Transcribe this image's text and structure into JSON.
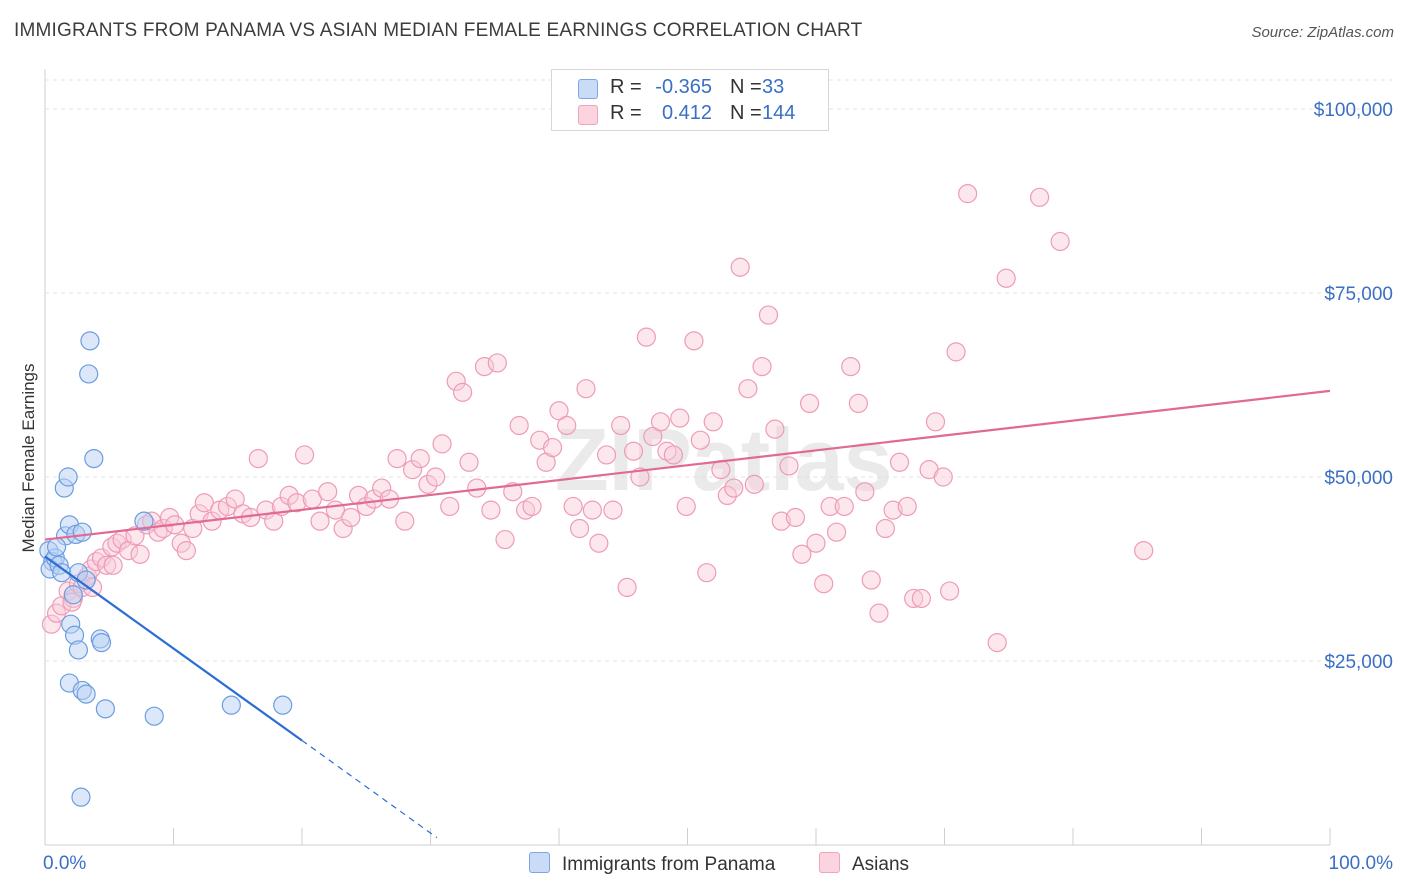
{
  "header": {
    "title": "IMMIGRANTS FROM PANAMA VS ASIAN MEDIAN FEMALE EARNINGS CORRELATION CHART",
    "source": "Source: ZipAtlas.com"
  },
  "watermark": "ZIPatlas",
  "legend": {
    "rows": [
      {
        "r_label": "R =",
        "r_value": "-0.365",
        "n_label": "N =",
        "n_value": "33",
        "color": "#a9c6f0"
      },
      {
        "r_label": "R =",
        "r_value": "0.412",
        "n_label": "N =",
        "n_value": "144",
        "color": "#f6b8cb"
      }
    ]
  },
  "bottom_legend": {
    "items": [
      {
        "label": "Immigrants from Panama",
        "color": "#a9c6f0"
      },
      {
        "label": "Asians",
        "color": "#f6b8cb"
      }
    ]
  },
  "chart_data": {
    "type": "scatter",
    "title": "IMMIGRANTS FROM PANAMA VS ASIAN MEDIAN FEMALE EARNINGS CORRELATION CHART",
    "xlabel": "",
    "ylabel": "Median Female Earnings",
    "xlim": [
      0,
      100
    ],
    "ylim": [
      0,
      105000
    ],
    "x_ticks": [
      "0.0%",
      "100.0%"
    ],
    "y_ticks": [
      {
        "value": 25000,
        "label": "$25,000"
      },
      {
        "value": 50000,
        "label": "$50,000"
      },
      {
        "value": 75000,
        "label": "$75,000"
      },
      {
        "value": 100000,
        "label": "$100,000"
      }
    ],
    "grid": "horizontal dashed",
    "legend_position": "top-center",
    "series": [
      {
        "name": "Immigrants from Panama",
        "color": "#7aa8e6",
        "line_color": "#2a6dd4",
        "trend": {
          "x_start": 0,
          "y_start": 39200,
          "x_solid_end": 20,
          "y_solid_end": 14200,
          "x_dash_end": 30.5,
          "y_dash_end": 1000
        },
        "points": [
          [
            0.3,
            40000
          ],
          [
            0.6,
            38500
          ],
          [
            0.4,
            37500
          ],
          [
            0.8,
            39000
          ],
          [
            1.1,
            38000
          ],
          [
            1.3,
            37000
          ],
          [
            1.6,
            42000
          ],
          [
            1.9,
            43500
          ],
          [
            2.2,
            34000
          ],
          [
            2.4,
            42200
          ],
          [
            2.6,
            37000
          ],
          [
            2.9,
            42500
          ],
          [
            3.2,
            36000
          ],
          [
            1.5,
            48500
          ],
          [
            1.8,
            50000
          ],
          [
            3.4,
            64000
          ],
          [
            3.5,
            68500
          ],
          [
            3.8,
            52500
          ],
          [
            2.0,
            30000
          ],
          [
            2.3,
            28500
          ],
          [
            2.6,
            26500
          ],
          [
            4.3,
            28000
          ],
          [
            4.4,
            27500
          ],
          [
            1.9,
            22000
          ],
          [
            2.9,
            21000
          ],
          [
            3.2,
            20500
          ],
          [
            4.7,
            18500
          ],
          [
            8.5,
            17500
          ],
          [
            14.5,
            19000
          ],
          [
            18.5,
            19000
          ],
          [
            2.8,
            6500
          ],
          [
            7.7,
            44000
          ],
          [
            0.9,
            40500
          ]
        ]
      },
      {
        "name": "Asians",
        "color": "#f6b8cb",
        "line_color": "#e06a93",
        "trend": {
          "x_start": 0,
          "y_start": 41500,
          "x_end": 100,
          "y_end": 61700
        },
        "points": [
          [
            0.5,
            30000
          ],
          [
            0.9,
            31500
          ],
          [
            1.3,
            32500
          ],
          [
            1.8,
            34500
          ],
          [
            2.2,
            33500
          ],
          [
            2.6,
            35500
          ],
          [
            2.9,
            35000
          ],
          [
            3.3,
            36500
          ],
          [
            3.6,
            37500
          ],
          [
            4.0,
            38500
          ],
          [
            4.4,
            39000
          ],
          [
            4.8,
            38000
          ],
          [
            5.2,
            40500
          ],
          [
            5.6,
            41000
          ],
          [
            6.0,
            41500
          ],
          [
            6.5,
            40000
          ],
          [
            7.0,
            42000
          ],
          [
            7.4,
            39500
          ],
          [
            7.9,
            43500
          ],
          [
            8.3,
            44000
          ],
          [
            8.8,
            42500
          ],
          [
            9.2,
            43000
          ],
          [
            9.7,
            44500
          ],
          [
            10.1,
            43500
          ],
          [
            10.6,
            41000
          ],
          [
            11.0,
            40000
          ],
          [
            11.5,
            43000
          ],
          [
            12.0,
            45000
          ],
          [
            12.4,
            46500
          ],
          [
            13.0,
            44000
          ],
          [
            13.6,
            45500
          ],
          [
            14.2,
            46000
          ],
          [
            14.8,
            47000
          ],
          [
            15.4,
            45000
          ],
          [
            16.0,
            44500
          ],
          [
            16.6,
            52500
          ],
          [
            17.2,
            45500
          ],
          [
            17.8,
            44000
          ],
          [
            18.4,
            46000
          ],
          [
            19.0,
            47500
          ],
          [
            19.6,
            46500
          ],
          [
            20.2,
            53000
          ],
          [
            20.8,
            47000
          ],
          [
            21.4,
            44000
          ],
          [
            22.0,
            48000
          ],
          [
            22.6,
            45500
          ],
          [
            23.2,
            43000
          ],
          [
            23.8,
            44500
          ],
          [
            24.4,
            47500
          ],
          [
            25.0,
            46000
          ],
          [
            25.6,
            47000
          ],
          [
            26.2,
            48500
          ],
          [
            26.8,
            47000
          ],
          [
            27.4,
            52500
          ],
          [
            28.0,
            44000
          ],
          [
            28.6,
            51000
          ],
          [
            29.2,
            52500
          ],
          [
            29.8,
            49000
          ],
          [
            30.4,
            50000
          ],
          [
            30.9,
            54500
          ],
          [
            31.5,
            46000
          ],
          [
            32.0,
            63000
          ],
          [
            32.5,
            61500
          ],
          [
            33.0,
            52000
          ],
          [
            33.6,
            48500
          ],
          [
            34.2,
            65000
          ],
          [
            34.7,
            45500
          ],
          [
            35.2,
            65500
          ],
          [
            35.8,
            41500
          ],
          [
            36.4,
            48000
          ],
          [
            36.9,
            57000
          ],
          [
            37.4,
            45500
          ],
          [
            37.9,
            46000
          ],
          [
            38.5,
            55000
          ],
          [
            39.0,
            52000
          ],
          [
            39.5,
            54000
          ],
          [
            40.0,
            59000
          ],
          [
            40.6,
            57000
          ],
          [
            41.1,
            46000
          ],
          [
            41.6,
            43000
          ],
          [
            42.1,
            62000
          ],
          [
            42.6,
            45500
          ],
          [
            43.1,
            41000
          ],
          [
            43.7,
            53000
          ],
          [
            44.2,
            45500
          ],
          [
            44.8,
            57000
          ],
          [
            45.3,
            35000
          ],
          [
            45.8,
            53500
          ],
          [
            46.3,
            50000
          ],
          [
            46.8,
            69000
          ],
          [
            47.3,
            55500
          ],
          [
            47.9,
            57500
          ],
          [
            48.4,
            53500
          ],
          [
            48.9,
            53000
          ],
          [
            49.4,
            58000
          ],
          [
            49.9,
            46000
          ],
          [
            50.5,
            68500
          ],
          [
            51.0,
            55000
          ],
          [
            51.5,
            37000
          ],
          [
            52.0,
            57500
          ],
          [
            52.6,
            51000
          ],
          [
            53.1,
            47500
          ],
          [
            53.6,
            48500
          ],
          [
            54.1,
            78500
          ],
          [
            54.7,
            62000
          ],
          [
            55.2,
            49000
          ],
          [
            55.8,
            65000
          ],
          [
            56.3,
            72000
          ],
          [
            56.8,
            56500
          ],
          [
            57.3,
            44000
          ],
          [
            57.9,
            51500
          ],
          [
            58.4,
            44500
          ],
          [
            58.9,
            39500
          ],
          [
            59.5,
            60000
          ],
          [
            60.0,
            41000
          ],
          [
            60.6,
            35500
          ],
          [
            61.1,
            46000
          ],
          [
            61.6,
            42500
          ],
          [
            62.2,
            46000
          ],
          [
            62.7,
            65000
          ],
          [
            63.3,
            60000
          ],
          [
            63.8,
            48000
          ],
          [
            64.3,
            36000
          ],
          [
            64.9,
            31500
          ],
          [
            65.4,
            43000
          ],
          [
            66.0,
            45500
          ],
          [
            66.5,
            52000
          ],
          [
            67.1,
            46000
          ],
          [
            67.6,
            33500
          ],
          [
            68.2,
            33500
          ],
          [
            68.8,
            51000
          ],
          [
            69.3,
            57500
          ],
          [
            69.9,
            50000
          ],
          [
            70.4,
            34500
          ],
          [
            70.9,
            67000
          ],
          [
            71.8,
            88500
          ],
          [
            74.1,
            27500
          ],
          [
            74.8,
            77000
          ],
          [
            77.4,
            88000
          ],
          [
            79.0,
            82000
          ],
          [
            85.5,
            40000
          ],
          [
            5.3,
            38000
          ],
          [
            3.7,
            35000
          ],
          [
            2.1,
            33000
          ]
        ]
      }
    ]
  }
}
